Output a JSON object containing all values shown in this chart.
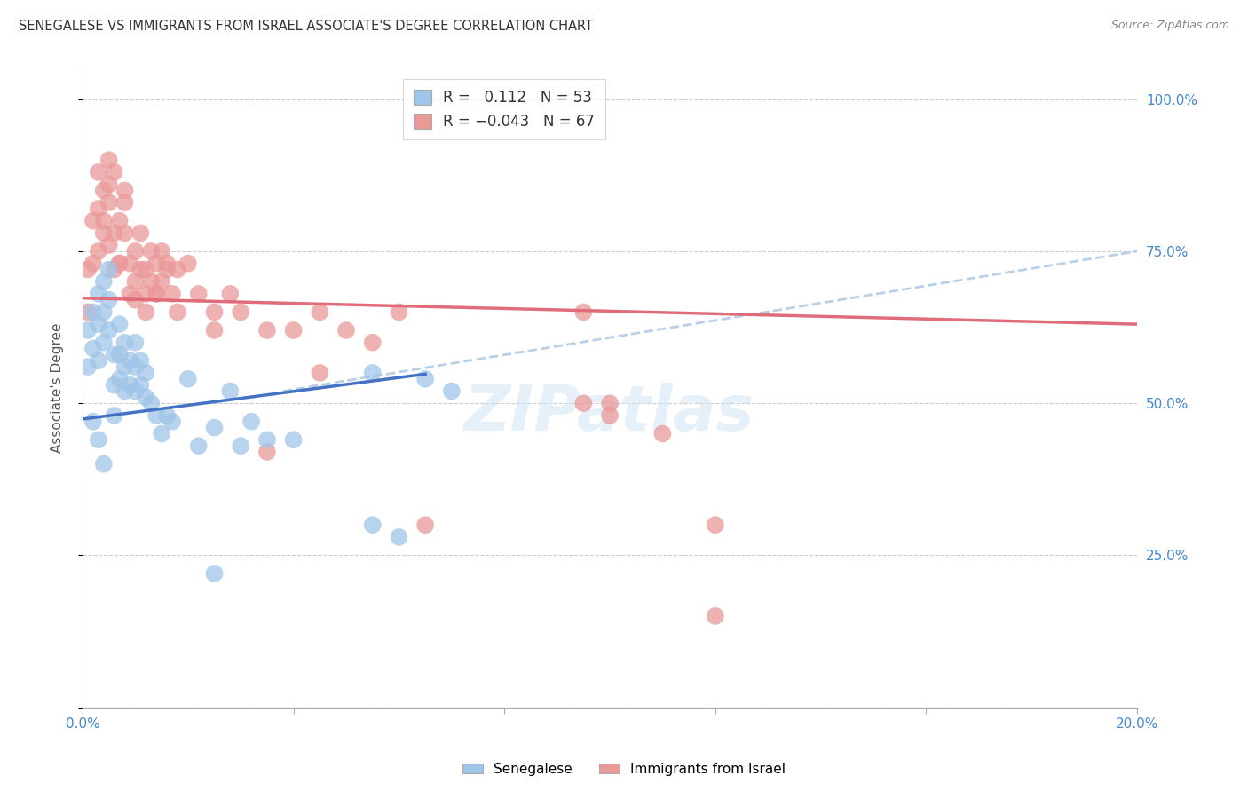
{
  "title": "SENEGALESE VS IMMIGRANTS FROM ISRAEL ASSOCIATE'S DEGREE CORRELATION CHART",
  "source": "Source: ZipAtlas.com",
  "ylabel": "Associate's Degree",
  "x_min": 0.0,
  "x_max": 0.2,
  "y_min": 0.0,
  "y_max": 1.05,
  "y_ticks": [
    0.0,
    0.25,
    0.5,
    0.75,
    1.0
  ],
  "y_tick_labels": [
    "",
    "25.0%",
    "50.0%",
    "75.0%",
    "100.0%"
  ],
  "blue_R": 0.112,
  "blue_N": 53,
  "pink_R": -0.043,
  "pink_N": 67,
  "blue_color": "#9fc5e8",
  "pink_color": "#ea9999",
  "blue_line_color": "#4472c4",
  "pink_line_color": "#e06c7a",
  "dash_line_color": "#b8d0e8",
  "legend_label_blue": "Senegalese",
  "legend_label_pink": "Immigrants from Israel",
  "blue_x": [
    0.001,
    0.001,
    0.002,
    0.002,
    0.003,
    0.003,
    0.003,
    0.004,
    0.004,
    0.004,
    0.005,
    0.005,
    0.005,
    0.006,
    0.006,
    0.006,
    0.007,
    0.007,
    0.007,
    0.008,
    0.008,
    0.008,
    0.009,
    0.009,
    0.01,
    0.01,
    0.01,
    0.011,
    0.011,
    0.012,
    0.012,
    0.013,
    0.014,
    0.015,
    0.016,
    0.017,
    0.02,
    0.022,
    0.025,
    0.028,
    0.03,
    0.032,
    0.035,
    0.04,
    0.055,
    0.06,
    0.065,
    0.07,
    0.002,
    0.003,
    0.004,
    0.025,
    0.055
  ],
  "blue_y": [
    0.62,
    0.56,
    0.65,
    0.59,
    0.68,
    0.63,
    0.57,
    0.7,
    0.65,
    0.6,
    0.72,
    0.67,
    0.62,
    0.58,
    0.53,
    0.48,
    0.63,
    0.58,
    0.54,
    0.6,
    0.56,
    0.52,
    0.57,
    0.53,
    0.6,
    0.56,
    0.52,
    0.57,
    0.53,
    0.55,
    0.51,
    0.5,
    0.48,
    0.45,
    0.48,
    0.47,
    0.54,
    0.43,
    0.46,
    0.52,
    0.43,
    0.47,
    0.44,
    0.44,
    0.55,
    0.28,
    0.54,
    0.52,
    0.47,
    0.44,
    0.4,
    0.22,
    0.3
  ],
  "pink_x": [
    0.001,
    0.001,
    0.002,
    0.002,
    0.003,
    0.003,
    0.004,
    0.004,
    0.005,
    0.005,
    0.005,
    0.006,
    0.006,
    0.007,
    0.007,
    0.008,
    0.008,
    0.009,
    0.009,
    0.01,
    0.01,
    0.011,
    0.011,
    0.012,
    0.012,
    0.013,
    0.013,
    0.014,
    0.014,
    0.015,
    0.015,
    0.016,
    0.017,
    0.018,
    0.02,
    0.022,
    0.025,
    0.028,
    0.03,
    0.035,
    0.04,
    0.045,
    0.05,
    0.055,
    0.06,
    0.065,
    0.095,
    0.1,
    0.003,
    0.004,
    0.005,
    0.006,
    0.007,
    0.008,
    0.01,
    0.012,
    0.014,
    0.016,
    0.018,
    0.025,
    0.035,
    0.045,
    0.095,
    0.11,
    0.12,
    0.1,
    0.12
  ],
  "pink_y": [
    0.72,
    0.65,
    0.8,
    0.73,
    0.88,
    0.82,
    0.85,
    0.78,
    0.9,
    0.83,
    0.76,
    0.78,
    0.72,
    0.8,
    0.73,
    0.85,
    0.78,
    0.68,
    0.73,
    0.75,
    0.7,
    0.78,
    0.72,
    0.72,
    0.68,
    0.75,
    0.7,
    0.73,
    0.68,
    0.75,
    0.7,
    0.73,
    0.68,
    0.72,
    0.73,
    0.68,
    0.65,
    0.68,
    0.65,
    0.62,
    0.62,
    0.65,
    0.62,
    0.6,
    0.65,
    0.3,
    0.65,
    0.5,
    0.75,
    0.8,
    0.86,
    0.88,
    0.73,
    0.83,
    0.67,
    0.65,
    0.68,
    0.72,
    0.65,
    0.62,
    0.42,
    0.55,
    0.5,
    0.45,
    0.3,
    0.48,
    0.15
  ],
  "blue_trend_x": [
    0.0,
    0.065
  ],
  "blue_trend_y": [
    0.474,
    0.548
  ],
  "pink_trend_x": [
    0.0,
    0.2
  ],
  "pink_trend_y": [
    0.673,
    0.63
  ],
  "dash_trend_x": [
    0.038,
    0.2
  ],
  "dash_trend_y": [
    0.52,
    0.75
  ]
}
